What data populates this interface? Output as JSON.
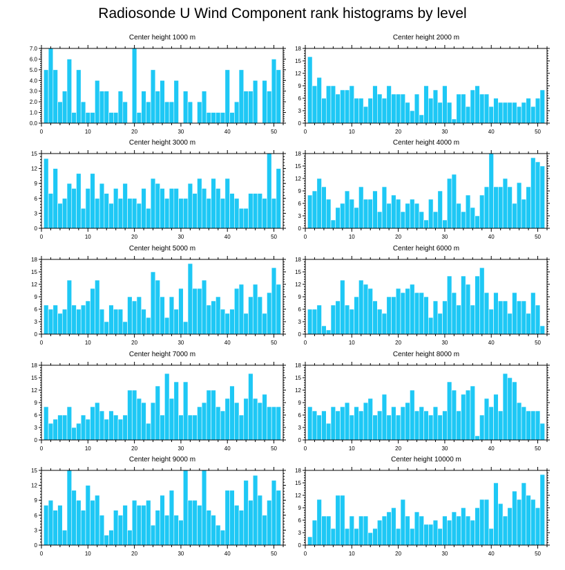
{
  "figure_title": "Radiosonde U Wind Component rank histograms by level",
  "chart_data": [
    {
      "type": "bar",
      "title": "Center height 1000 m",
      "xlim": [
        0,
        52
      ],
      "ylim": [
        0,
        7
      ],
      "yticks": [
        0,
        1,
        2,
        3,
        4,
        5,
        6,
        7
      ],
      "ytick_labels": [
        "0.0",
        "1.0",
        "2.0",
        "3.0",
        "4.0",
        "5.0",
        "6.0",
        "7.0"
      ],
      "xticks": [
        0,
        10,
        20,
        30,
        40,
        50
      ],
      "values": [
        5,
        7,
        5,
        2,
        3,
        6,
        1,
        5,
        2,
        1,
        1,
        4,
        3,
        3,
        1,
        1,
        3,
        2,
        0,
        7,
        1,
        3,
        2,
        5,
        3,
        4,
        2,
        2,
        4,
        0,
        3,
        2,
        0,
        2,
        3,
        1,
        1,
        1,
        1,
        5,
        1,
        2,
        5,
        3,
        3,
        4,
        0,
        4,
        3,
        6,
        5
      ]
    },
    {
      "type": "bar",
      "title": "Center height 2000 m",
      "xlim": [
        0,
        52
      ],
      "ylim": [
        0,
        18
      ],
      "yticks": [
        0,
        3,
        6,
        9,
        12,
        15,
        18
      ],
      "ytick_labels": [
        "0",
        "3",
        "6",
        "9",
        "12",
        "15",
        "18"
      ],
      "xticks": [
        0,
        10,
        20,
        30,
        40,
        50
      ],
      "values": [
        16,
        9,
        11,
        6,
        9,
        9,
        7,
        8,
        8,
        9,
        6,
        6,
        4,
        6,
        9,
        7,
        6,
        9,
        7,
        7,
        7,
        5,
        3,
        7,
        2,
        9,
        6,
        8,
        5,
        9,
        5,
        1,
        7,
        7,
        4,
        8,
        9,
        7,
        7,
        4,
        6,
        5,
        5,
        5,
        5,
        4,
        5,
        6,
        4,
        6,
        8
      ]
    },
    {
      "type": "bar",
      "title": "Center height 3000 m",
      "xlim": [
        0,
        52
      ],
      "ylim": [
        0,
        15
      ],
      "yticks": [
        0,
        3,
        6,
        9,
        12,
        15
      ],
      "ytick_labels": [
        "0",
        "3",
        "6",
        "9",
        "12",
        "15"
      ],
      "xticks": [
        0,
        10,
        20,
        30,
        40,
        50
      ],
      "values": [
        14,
        7,
        12,
        5,
        6,
        9,
        8,
        11,
        4,
        8,
        11,
        6,
        9,
        7,
        5,
        8,
        6,
        9,
        6,
        6,
        5,
        8,
        4,
        10,
        9,
        8,
        6,
        8,
        8,
        6,
        6,
        9,
        7,
        10,
        8,
        6,
        10,
        8,
        6,
        10,
        7,
        6,
        4,
        4,
        7,
        7,
        7,
        6,
        15,
        6,
        12
      ]
    },
    {
      "type": "bar",
      "title": "Center height 4000 m",
      "xlim": [
        0,
        52
      ],
      "ylim": [
        0,
        18
      ],
      "yticks": [
        0,
        3,
        6,
        9,
        12,
        15,
        18
      ],
      "ytick_labels": [
        "0",
        "3",
        "6",
        "9",
        "12",
        "15",
        "18"
      ],
      "xticks": [
        0,
        10,
        20,
        30,
        40,
        50
      ],
      "values": [
        8,
        9,
        12,
        10,
        7,
        2,
        5,
        6,
        9,
        7,
        5,
        10,
        7,
        7,
        9,
        4,
        10,
        6,
        8,
        7,
        4,
        6,
        7,
        6,
        4,
        2,
        7,
        4,
        9,
        2,
        12,
        13,
        6,
        4,
        8,
        5,
        3,
        8,
        10,
        18,
        10,
        10,
        12,
        10,
        6,
        11,
        7,
        10,
        17,
        16,
        15
      ]
    },
    {
      "type": "bar",
      "title": "Center height 5000 m",
      "xlim": [
        0,
        52
      ],
      "ylim": [
        0,
        18
      ],
      "yticks": [
        0,
        3,
        6,
        9,
        12,
        15,
        18
      ],
      "ytick_labels": [
        "0",
        "3",
        "6",
        "9",
        "12",
        "15",
        "18"
      ],
      "xticks": [
        0,
        10,
        20,
        30,
        40,
        50
      ],
      "values": [
        7,
        6,
        7,
        5,
        6,
        13,
        7,
        6,
        7,
        8,
        11,
        13,
        6,
        3,
        7,
        6,
        6,
        3,
        9,
        8,
        9,
        6,
        4,
        15,
        13,
        9,
        4,
        9,
        6,
        11,
        3,
        17,
        11,
        11,
        13,
        7,
        8,
        9,
        6,
        5,
        6,
        11,
        12,
        5,
        9,
        12,
        9,
        5,
        10,
        16,
        12
      ]
    },
    {
      "type": "bar",
      "title": "Center height 6000 m",
      "xlim": [
        0,
        52
      ],
      "ylim": [
        0,
        18
      ],
      "yticks": [
        0,
        3,
        6,
        9,
        12,
        15,
        18
      ],
      "ytick_labels": [
        "0",
        "3",
        "6",
        "9",
        "12",
        "15",
        "18"
      ],
      "xticks": [
        0,
        10,
        20,
        30,
        40,
        50
      ],
      "values": [
        6,
        6,
        7,
        2,
        1,
        7,
        8,
        13,
        7,
        6,
        9,
        13,
        12,
        11,
        8,
        6,
        5,
        9,
        9,
        11,
        10,
        11,
        12,
        10,
        10,
        9,
        4,
        8,
        5,
        8,
        14,
        10,
        7,
        14,
        12,
        7,
        14,
        16,
        10,
        6,
        10,
        8,
        8,
        5,
        10,
        8,
        8,
        5,
        10,
        7,
        2
      ]
    },
    {
      "type": "bar",
      "title": "Center height 7000 m",
      "xlim": [
        0,
        52
      ],
      "ylim": [
        0,
        18
      ],
      "yticks": [
        0,
        3,
        6,
        9,
        12,
        15,
        18
      ],
      "ytick_labels": [
        "0",
        "3",
        "6",
        "9",
        "12",
        "15",
        "18"
      ],
      "xticks": [
        0,
        10,
        20,
        30,
        40,
        50
      ],
      "values": [
        8,
        4,
        5,
        6,
        6,
        8,
        3,
        4,
        6,
        5,
        8,
        9,
        7,
        5,
        7,
        6,
        5,
        6,
        12,
        12,
        10,
        9,
        4,
        9,
        13,
        6,
        16,
        10,
        14,
        6,
        14,
        6,
        6,
        8,
        9,
        12,
        12,
        8,
        7,
        10,
        13,
        9,
        6,
        10,
        16,
        10,
        9,
        11,
        8,
        8,
        8
      ]
    },
    {
      "type": "bar",
      "title": "Center height 8000 m",
      "xlim": [
        0,
        52
      ],
      "ylim": [
        0,
        18
      ],
      "yticks": [
        0,
        3,
        6,
        9,
        12,
        15,
        18
      ],
      "ytick_labels": [
        "0",
        "3",
        "6",
        "9",
        "12",
        "15",
        "18"
      ],
      "xticks": [
        0,
        10,
        20,
        30,
        40,
        50
      ],
      "values": [
        8,
        7,
        6,
        7,
        4,
        8,
        7,
        8,
        9,
        6,
        8,
        7,
        9,
        10,
        6,
        7,
        11,
        6,
        8,
        6,
        8,
        9,
        12,
        7,
        8,
        7,
        6,
        8,
        6,
        7,
        14,
        12,
        7,
        11,
        12,
        13,
        1,
        6,
        10,
        8,
        11,
        7,
        16,
        15,
        14,
        9,
        8,
        7,
        7,
        7,
        4
      ]
    },
    {
      "type": "bar",
      "title": "Center height 9000 m",
      "xlim": [
        0,
        52
      ],
      "ylim": [
        0,
        15
      ],
      "yticks": [
        0,
        3,
        6,
        9,
        12,
        15
      ],
      "ytick_labels": [
        "0",
        "3",
        "6",
        "9",
        "12",
        "15"
      ],
      "xticks": [
        0,
        10,
        20,
        30,
        40,
        50
      ],
      "values": [
        8,
        9,
        7,
        8,
        3,
        15,
        11,
        9,
        7,
        12,
        9,
        10,
        6,
        2,
        3,
        7,
        6,
        8,
        3,
        9,
        8,
        8,
        9,
        4,
        7,
        10,
        6,
        11,
        6,
        5,
        15,
        9,
        9,
        8,
        15,
        7,
        6,
        4,
        3,
        11,
        11,
        8,
        7,
        13,
        9,
        14,
        10,
        6,
        9,
        13,
        11
      ]
    },
    {
      "type": "bar",
      "title": "Center height 10000 m",
      "xlim": [
        0,
        52
      ],
      "ylim": [
        0,
        18
      ],
      "yticks": [
        0,
        3,
        6,
        9,
        12,
        15,
        18
      ],
      "ytick_labels": [
        "0",
        "3",
        "6",
        "9",
        "12",
        "15",
        "18"
      ],
      "xticks": [
        0,
        10,
        20,
        30,
        40,
        50
      ],
      "values": [
        2,
        6,
        11,
        7,
        7,
        4,
        12,
        12,
        4,
        7,
        4,
        7,
        7,
        3,
        4,
        6,
        7,
        8,
        9,
        4,
        11,
        7,
        4,
        8,
        7,
        5,
        5,
        6,
        4,
        7,
        6,
        8,
        7,
        9,
        7,
        6,
        9,
        11,
        11,
        4,
        15,
        10,
        7,
        9,
        13,
        11,
        15,
        12,
        11,
        9,
        17
      ]
    }
  ]
}
